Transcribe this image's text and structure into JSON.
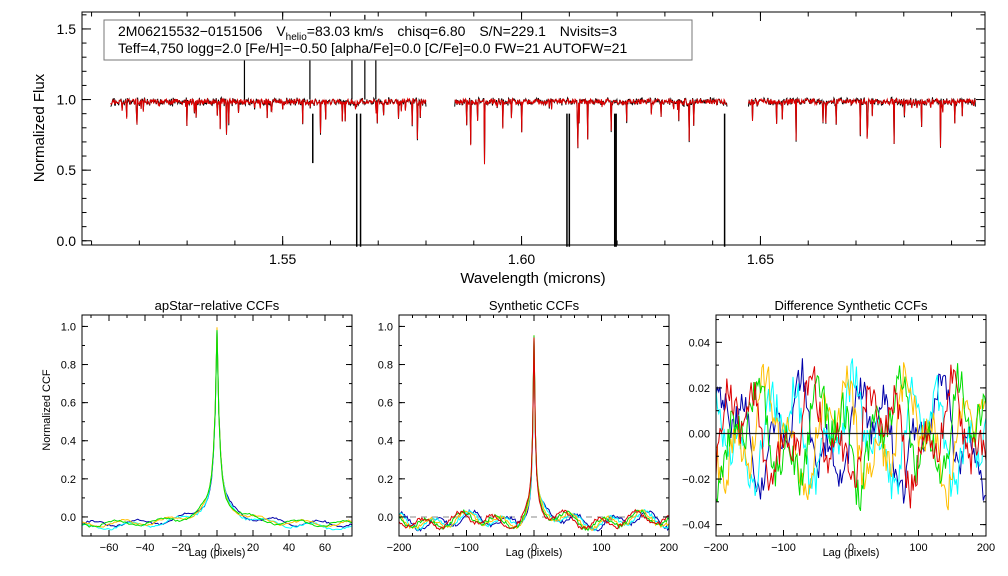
{
  "chart_data": [
    {
      "type": "line",
      "name": "spectrum",
      "xlabel": "Wavelength (microns)",
      "ylabel": "Normalized Flux",
      "xlim": [
        1.508,
        1.697
      ],
      "ylim": [
        -0.03,
        1.62
      ],
      "xticks": [
        1.55,
        1.6,
        1.65
      ],
      "xtick_labels": [
        "1.55",
        "1.60",
        "1.65"
      ],
      "yticks": [
        0.0,
        0.5,
        1.0,
        1.5
      ],
      "ytick_labels": [
        "0.0",
        "0.5",
        "1.0",
        "1.5"
      ],
      "chips": [
        [
          1.514,
          1.58
        ],
        [
          1.586,
          1.643
        ],
        [
          1.6475,
          1.695
        ]
      ],
      "series": [
        {
          "name": "observed",
          "color": "#000000"
        },
        {
          "name": "model",
          "color": "#dd0000"
        }
      ],
      "info_box": {
        "line1_a": "2M06215532−0151506",
        "v_main": "V",
        "v_sub": "helio",
        "line1_b": "=83.03 km/s",
        "chisq": "chisq=6.80",
        "sn": "S/N=229.1",
        "nvisits": "Nvisits=3",
        "line2": "Teff=4,750 logg=2.0 [Fe/H]=−0.50 [alpha/Fe]=0.0 [C/Fe]=0.0 FW=21 AUTOFW=21"
      }
    },
    {
      "type": "line",
      "name": "apstar-ccf",
      "title": "apStar−relative CCFs",
      "xlabel": "Lag (pixels)",
      "ylabel": "Normalized CCF",
      "xlim": [
        -75,
        75
      ],
      "ylim": [
        -0.1,
        1.06
      ],
      "xticks": [
        -60,
        -40,
        -20,
        0,
        20,
        40,
        60
      ],
      "xtick_labels": [
        "−60",
        "−40",
        "−20",
        "0",
        "20",
        "40",
        "60"
      ],
      "yticks": [
        0.0,
        0.2,
        0.4,
        0.6,
        0.8,
        1.0
      ],
      "ytick_labels": [
        "0.0",
        "0.2",
        "0.4",
        "0.6",
        "0.8",
        "1.0"
      ],
      "series": [
        {
          "name": "visit 1",
          "color": "#0000aa"
        },
        {
          "name": "visit 2",
          "color": "#00ffff"
        },
        {
          "name": "visit 3",
          "color": "#ffbf00"
        },
        {
          "name": "visit 4",
          "color": "#00dd00"
        }
      ]
    },
    {
      "type": "line",
      "name": "synthetic-ccf",
      "title": "Synthetic CCFs",
      "xlabel": "Lag (pixels)",
      "xlim": [
        -200,
        200
      ],
      "ylim": [
        -0.1,
        1.06
      ],
      "xticks": [
        -200,
        -100,
        0,
        100,
        200
      ],
      "xtick_labels": [
        "−200",
        "−100",
        "0",
        "100",
        "200"
      ],
      "yticks": [
        0.0,
        0.2,
        0.4,
        0.6,
        0.8,
        1.0
      ],
      "ytick_labels": [
        "0.0",
        "0.2",
        "0.4",
        "0.6",
        "0.8",
        "1.0"
      ],
      "series": [
        {
          "name": "visit 1",
          "color": "#0000aa"
        },
        {
          "name": "visit 2",
          "color": "#00ffff"
        },
        {
          "name": "visit 3",
          "color": "#ffbf00"
        },
        {
          "name": "visit 4",
          "color": "#00dd00"
        },
        {
          "name": "combined",
          "color": "#dd0000"
        }
      ]
    },
    {
      "type": "line",
      "name": "difference-ccf",
      "title": "Difference Synthetic CCFs",
      "xlabel": "Lag (pixels)",
      "xlim": [
        -200,
        200
      ],
      "ylim": [
        -0.045,
        0.052
      ],
      "xticks": [
        -200,
        -100,
        0,
        100,
        200
      ],
      "xtick_labels": [
        "−200",
        "−100",
        "0",
        "100",
        "200"
      ],
      "yticks": [
        -0.04,
        -0.02,
        0.0,
        0.02,
        0.04
      ],
      "ytick_labels": [
        "−0.04",
        "−0.02",
        "0.00",
        "0.02",
        "0.04"
      ],
      "series": [
        {
          "name": "visit 1",
          "color": "#0000aa"
        },
        {
          "name": "visit 2",
          "color": "#00ffff"
        },
        {
          "name": "visit 3",
          "color": "#ffbf00"
        },
        {
          "name": "visit 4",
          "color": "#00dd00"
        },
        {
          "name": "visit 5",
          "color": "#dd0000"
        }
      ]
    }
  ]
}
